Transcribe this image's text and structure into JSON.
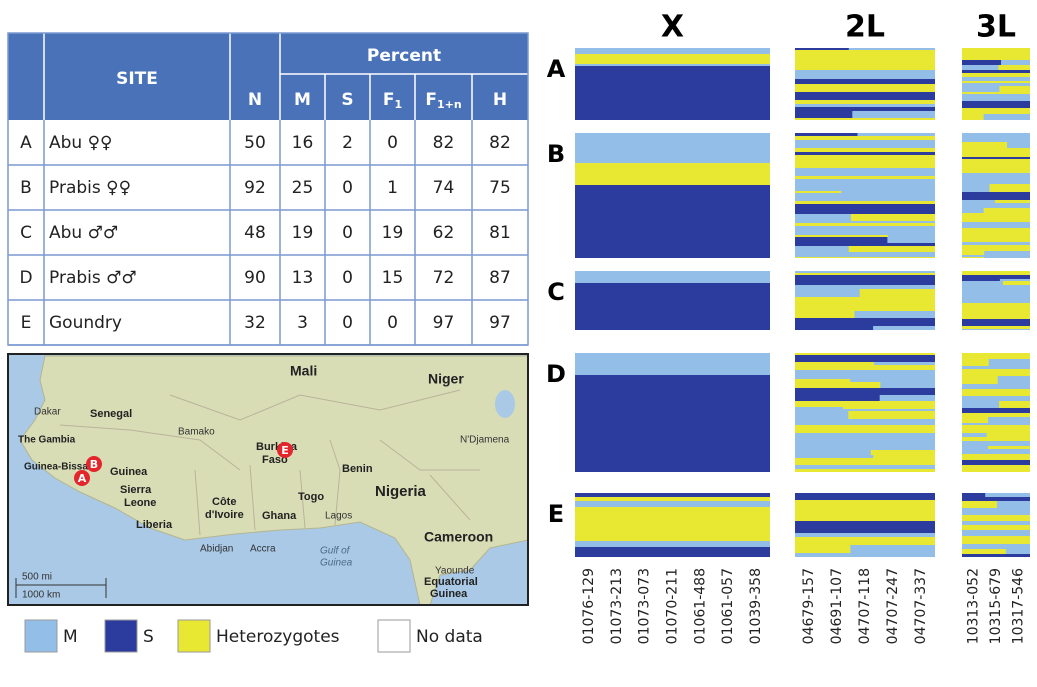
{
  "table": {
    "header": {
      "site": "SITE",
      "n": "N",
      "percent": "Percent",
      "cols": [
        {
          "main": "M"
        },
        {
          "main": "S"
        },
        {
          "main": "F",
          "sub": "1"
        },
        {
          "main": "F",
          "sub": "1+n"
        },
        {
          "main": "H"
        }
      ]
    },
    "rows": [
      [
        "A",
        "Abu ♀♀",
        50,
        16,
        2,
        0,
        82,
        82
      ],
      [
        "B",
        "Prabis ♀♀",
        92,
        25,
        0,
        1,
        74,
        75
      ],
      [
        "C",
        "Abu ♂♂",
        48,
        19,
        0,
        19,
        62,
        81
      ],
      [
        "D",
        "Prabis ♂♂",
        90,
        13,
        0,
        15,
        72,
        87
      ],
      [
        "E",
        "Goundry",
        32,
        3,
        0,
        0,
        97,
        97
      ]
    ]
  },
  "map": {
    "labels": [
      "Mali",
      "Niger",
      "Dakar",
      "Senegal",
      "The Gambia",
      "Bamako",
      "Guinea-Bissau",
      "Guinea",
      "Burkina",
      "Faso",
      "N'Djamena",
      "Benin",
      "Nigeria",
      "Sierra",
      "Leone",
      "Côte",
      "d'Ivoire",
      "Togo",
      "Ghana",
      "Liberia",
      "Lagos",
      "Abidjan",
      "Accra",
      "Gulf of",
      "Guinea",
      "Cameroon",
      "Yaounde",
      "Equatorial",
      "Guinea"
    ],
    "markers": [
      "A",
      "B",
      "E"
    ],
    "scale": [
      "500 mi",
      "1000 km"
    ]
  },
  "legend": [
    "M",
    "S",
    "Heterozygotes",
    "No data"
  ],
  "genotypes": {
    "samples": [
      "A",
      "B",
      "C",
      "D",
      "E"
    ],
    "chromosomes": [
      {
        "name": "X",
        "loci": [
          "01076-129",
          "01073-213",
          "01073-073",
          "01070-211",
          "01061-488",
          "01061-057",
          "01039-358"
        ]
      },
      {
        "name": "2L",
        "loci": [
          "04679-157",
          "04691-107",
          "04707-118",
          "04707-247",
          "04707-337"
        ]
      },
      {
        "name": "3L",
        "loci": [
          "10313-052",
          "10315-679",
          "10317-546"
        ]
      }
    ]
  }
}
